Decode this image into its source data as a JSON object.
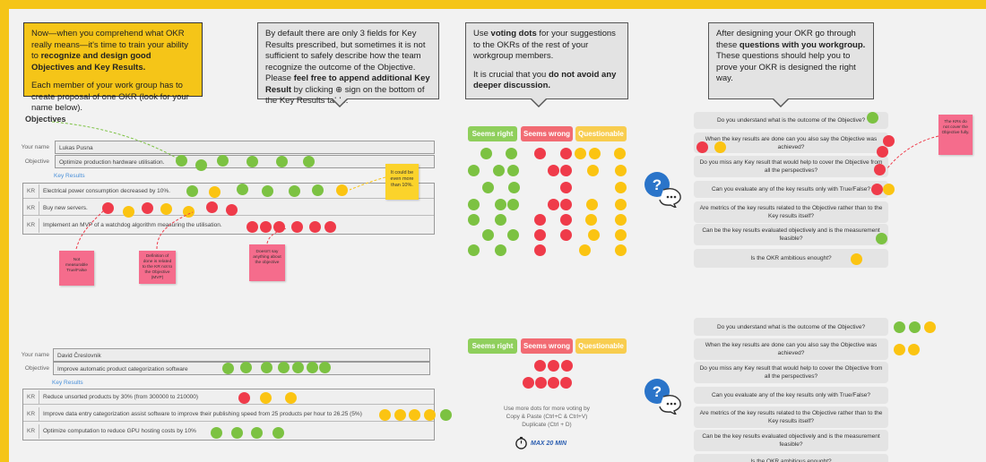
{
  "callouts": {
    "c1_text1": "Now—when you comprehend what OKR really means—it's time to train your ability to ",
    "c1_bold": "recognize and design good Objectives and Key Results.",
    "c1_text2": "Each member of your work group has to create proposal of one OKR (look for your name below).",
    "c2_text1": "By default there are only 3 fields for Key Results prescribed, but sometimes it is not sufficient to safely describe how the team recognize the outcome of the Objective. Please ",
    "c2_bold": "feel free to append additional Key Result",
    "c2_text2": " by clicking ⊕ sign on the bottom of the Key Results table.",
    "c3_text1": "Use ",
    "c3_bold1": "voting dots",
    "c3_text2": " for your suggestions to the OKRs of the rest of your workgroup members.",
    "c3_text3": "It is crucial that you ",
    "c3_bold2": "do not avoid any deeper discussion.",
    "c4_text1": "After designing your OKR go through these ",
    "c4_bold": "questions with you workgroup.",
    "c4_text2": " These questions should help you to prove your OKR is designed the right way."
  },
  "okr1": {
    "section_title": "Objectives",
    "name_label": "Your name",
    "name_value": "Lukas Pusna",
    "objective_label": "Objective",
    "objective_value": "Optimize production hardware utilisation.",
    "kr_header": "Key Results",
    "krs": [
      {
        "label": "KR",
        "text": "Electrical power consumption decreased by 10%."
      },
      {
        "label": "KR",
        "text": "Buy new servers."
      },
      {
        "label": "KR",
        "text": "Implement an MVP of a watchdog algorithm measuring the utilisation."
      }
    ]
  },
  "okr2": {
    "name_label": "Your name",
    "name_value": "David Čreslovnik",
    "objective_label": "Objective",
    "objective_value": "Improve automatic product categorization software",
    "kr_header": "Key Results",
    "krs": [
      {
        "label": "KR",
        "text": "Reduce unsorted products by 30% (from 300000 to 210000)"
      },
      {
        "label": "KR",
        "text": "Improve data entry categorization assist software to improve their publishing speed from 25 products per hour to 26.25 (5%)"
      },
      {
        "label": "KR",
        "text": "Optimize computation to reduce GPU hosting costs by 10%"
      }
    ]
  },
  "stickies": {
    "s1": "Not measurable True/False",
    "s2": "Definition of done is related to the KR not to the Objective (MVP)",
    "s3": "Doesn't say anything about the objective",
    "s4": "It could be even more than 10%.",
    "s5": "The KRs do not cover the Objective fully."
  },
  "voting": {
    "right": "Seems right",
    "wrong": "Seems wrong",
    "questionable": "Questionable",
    "note_line1": "Use more dots for more voting by",
    "note_line2": "Copy & Paste (Ctrl+C & Ctrl+V)",
    "note_line3": "Duplicate (Ctrl + D)",
    "timer": "MAX 20 MIN"
  },
  "questions": [
    "Do you understand what is the outcome of the Objective?",
    "When the key results are done can you also say the Objective was achieved?",
    "Do you miss any Key result that would help to cover the Objective from all the perspectives?",
    "Can you evaluate any of the key results only with True/False?",
    "Are metrics of the key results related to the Objective rather than to the Key results itself?",
    "Can be the key results evaluated objectively and is the measurement feasible?",
    "Is the OKR ambitious enought?"
  ],
  "colors": {
    "frame": "#f5c518",
    "green": "#7cc242",
    "red": "#ef3b4a",
    "yellow": "#fbc412",
    "sticky_pink": "#f56c8c"
  },
  "icons": [
    "question-chat-icon",
    "stopwatch-icon"
  ]
}
